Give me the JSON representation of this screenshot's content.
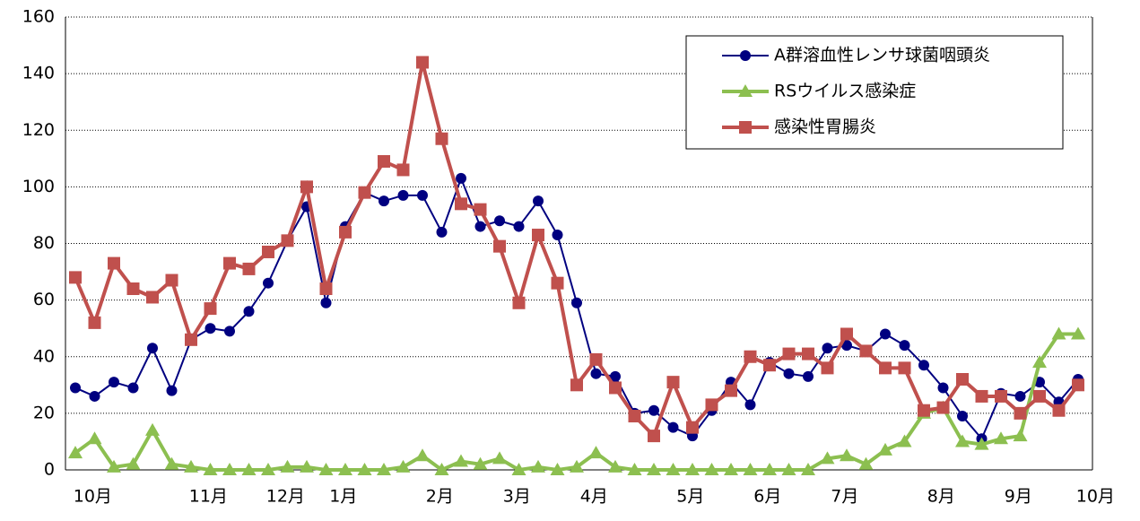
{
  "chart_data": {
    "type": "line",
    "categories": [
      "10月",
      null,
      null,
      null,
      null,
      null,
      "11月",
      null,
      null,
      null,
      "12月",
      null,
      null,
      "1月",
      null,
      null,
      null,
      null,
      "2月",
      null,
      null,
      null,
      "3月",
      null,
      null,
      null,
      "4月",
      null,
      null,
      null,
      null,
      "5月",
      null,
      null,
      null,
      "6月",
      null,
      null,
      null,
      "7月",
      null,
      null,
      null,
      null,
      "8月",
      null,
      null,
      null,
      "9月",
      null,
      null,
      null,
      "10月"
    ],
    "series": [
      {
        "name": "A群溶血性レンサ球菌咽頭炎",
        "color": "#000080",
        "marker": "circle",
        "values": [
          29,
          26,
          31,
          29,
          43,
          28,
          46,
          50,
          49,
          56,
          66,
          81,
          93,
          59,
          86,
          98,
          95,
          97,
          97,
          84,
          103,
          86,
          88,
          86,
          95,
          83,
          59,
          34,
          33,
          20,
          21,
          15,
          12,
          21,
          31,
          23,
          38,
          34,
          33,
          43,
          44,
          42,
          48,
          44,
          37,
          29,
          19,
          11,
          27,
          26,
          31,
          24,
          32
        ]
      },
      {
        "name": "RSウイルス感染症",
        "color": "#8cbf50",
        "marker": "triangle",
        "values": [
          6,
          11,
          1,
          2,
          14,
          2,
          1,
          0,
          0,
          0,
          0,
          1,
          1,
          0,
          0,
          0,
          0,
          1,
          5,
          0,
          3,
          2,
          4,
          0,
          1,
          0,
          1,
          6,
          1,
          0,
          0,
          0,
          0,
          0,
          0,
          0,
          0,
          0,
          0,
          4,
          5,
          2,
          7,
          10,
          20,
          22,
          10,
          9,
          11,
          12,
          38,
          48,
          48
        ]
      },
      {
        "name": "感染性胃腸炎",
        "color": "#c0504d",
        "marker": "square",
        "values": [
          68,
          52,
          73,
          64,
          61,
          67,
          46,
          57,
          73,
          71,
          77,
          81,
          100,
          64,
          84,
          98,
          109,
          106,
          144,
          117,
          94,
          92,
          79,
          59,
          83,
          66,
          30,
          39,
          29,
          19,
          12,
          31,
          15,
          23,
          28,
          40,
          37,
          41,
          41,
          36,
          48,
          42,
          36,
          36,
          21,
          22,
          32,
          26,
          26,
          20,
          26,
          21,
          30
        ]
      }
    ],
    "ylim": [
      0,
      160
    ],
    "yticks": [
      0,
      20,
      40,
      60,
      80,
      100,
      120,
      140,
      160
    ],
    "grid": true,
    "legend": "top-right"
  }
}
